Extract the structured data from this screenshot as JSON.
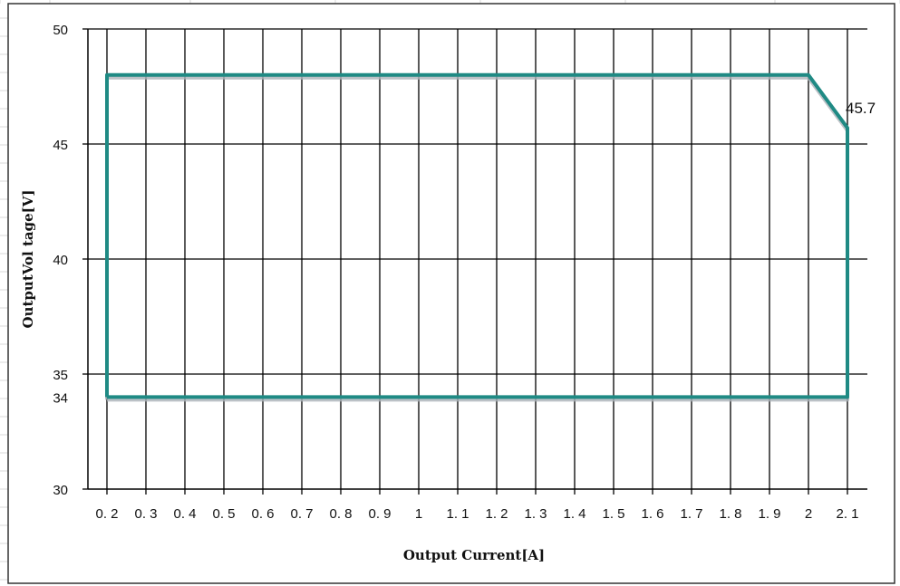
{
  "chart_data": {
    "type": "line",
    "title": "",
    "xlabel": "Output Current[A]",
    "ylabel": "OutputVol tage[V]",
    "categories": [
      "0. 2",
      "0. 3",
      "0. 4",
      "0. 5",
      "0. 6",
      "0. 7",
      "0. 8",
      "0. 9",
      "1",
      "1. 1",
      "1. 2",
      "1. 3",
      "1. 4",
      "1. 5",
      "1. 6",
      "1. 7",
      "1. 8",
      "1. 9",
      "2",
      "2. 1"
    ],
    "ylim": [
      30,
      50
    ],
    "yticks": [
      {
        "value": 30,
        "label": "30"
      },
      {
        "value": 34,
        "label": "34"
      },
      {
        "value": 35,
        "label": "35"
      },
      {
        "value": 40,
        "label": "40"
      },
      {
        "value": 45,
        "label": "45"
      },
      {
        "value": 50,
        "label": "50"
      }
    ],
    "ygrid_values": [
      35,
      40,
      45,
      50
    ],
    "series": [
      {
        "color": "#1f8a84",
        "points": [
          {
            "x": 0.2,
            "y": 34
          },
          {
            "x": 0.2,
            "y": 48
          },
          {
            "x": 2.0,
            "y": 48
          },
          {
            "x": 2.1,
            "y": 45.7
          },
          {
            "x": 2.1,
            "y": 34
          },
          {
            "x": 0.2,
            "y": 34
          }
        ]
      }
    ],
    "annotations": [
      {
        "x": 2.1,
        "y": 45.7,
        "text": "45.7"
      }
    ],
    "grid": true,
    "legend": "none"
  },
  "colors": {
    "line": "#1f8a84",
    "shadow": "#aab1b8",
    "grid": "#000000",
    "frame": "#333333",
    "sheet_grid": "#d9d9d9"
  }
}
